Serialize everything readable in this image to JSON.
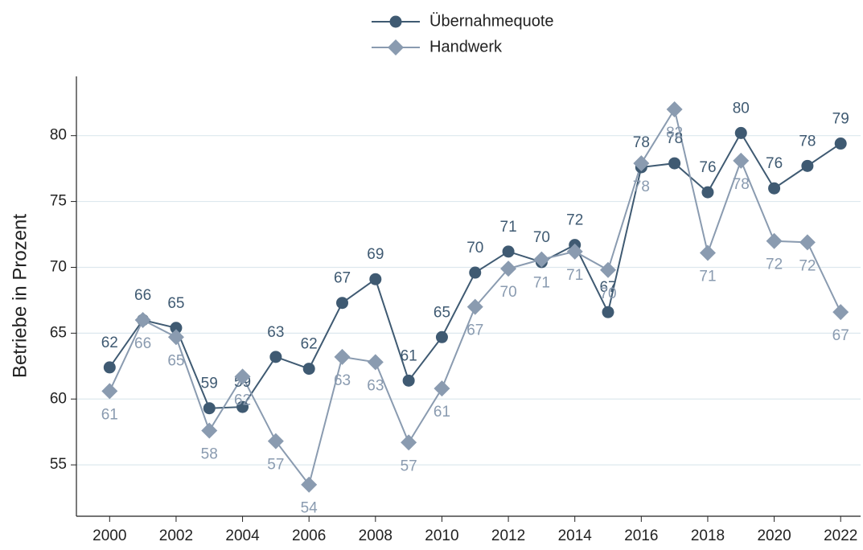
{
  "chart_data": {
    "type": "line",
    "y_label": "Betriebe in Prozent",
    "x": [
      2000,
      2001,
      2002,
      2003,
      2004,
      2005,
      2006,
      2007,
      2008,
      2009,
      2010,
      2011,
      2012,
      2013,
      2014,
      2015,
      2016,
      2017,
      2018,
      2019,
      2020,
      2021,
      2022
    ],
    "series": [
      {
        "name": "Übernahmequote",
        "color": "#3f5a72",
        "marker": "circle",
        "values": [
          62.4,
          66.0,
          65.4,
          59.3,
          59.4,
          63.2,
          62.3,
          67.3,
          69.1,
          61.4,
          64.7,
          69.6,
          71.2,
          70.4,
          71.7,
          66.6,
          77.6,
          77.9,
          75.7,
          80.2,
          76.0,
          77.7,
          79.4
        ],
        "value_labels": [
          "62",
          "66",
          "65",
          "59",
          "59",
          "63",
          "62",
          "67",
          "69",
          "61",
          "65",
          "70",
          "71",
          "70",
          "72",
          "67",
          "78",
          "78",
          "76",
          "80",
          "76",
          "78",
          "79"
        ]
      },
      {
        "name": "Handwerk",
        "color": "#8a9bb0",
        "marker": "diamond",
        "values": [
          60.6,
          66.0,
          64.7,
          57.6,
          61.7,
          56.8,
          53.5,
          63.2,
          62.8,
          56.7,
          60.8,
          67.0,
          69.9,
          70.6,
          71.2,
          69.8,
          77.9,
          82.0,
          71.1,
          78.1,
          72.0,
          71.9,
          66.6
        ],
        "value_labels": [
          "61",
          "66",
          "65",
          "58",
          "62",
          "57",
          "54",
          "63",
          "63",
          "57",
          "61",
          "67",
          "70",
          "71",
          "71",
          "70",
          "78",
          "82",
          "71",
          "78",
          "72",
          "72",
          "67"
        ]
      }
    ],
    "xlim": [
      1999,
      2022.6
    ],
    "xticks": [
      2000,
      2002,
      2004,
      2006,
      2008,
      2010,
      2012,
      2014,
      2016,
      2018,
      2020,
      2022
    ],
    "ylim": [
      51.1,
      84.5
    ],
    "yticks": [
      55,
      60,
      65,
      70,
      75,
      80
    ],
    "grid": true
  }
}
